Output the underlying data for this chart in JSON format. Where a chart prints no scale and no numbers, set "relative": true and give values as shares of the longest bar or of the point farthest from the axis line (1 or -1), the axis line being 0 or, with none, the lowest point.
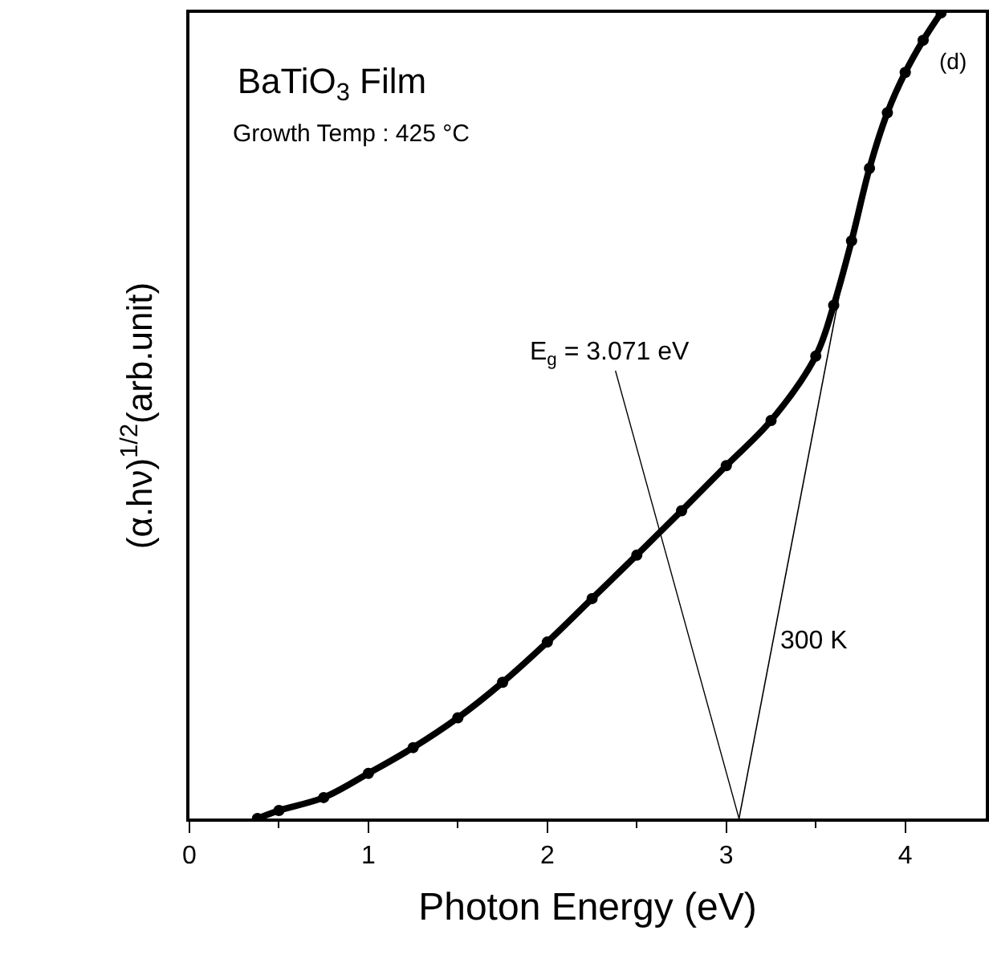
{
  "chart_data": {
    "type": "line",
    "relative": true,
    "title": "BaTiO$_{3}$ Film",
    "xlabel": "Photon Energy (eV)",
    "ylabel": "(α.hν)$^{1/2}$(arb.unit)",
    "xlim": [
      0,
      4.45
    ],
    "xticks": [
      0,
      1,
      2,
      3,
      4
    ],
    "marker": "circle",
    "tick_labels": "x",
    "series": [
      {
        "color": "#000000",
        "x": [
          0.38,
          0.5,
          0.75,
          1.0,
          1.25,
          1.5,
          1.75,
          2.0,
          2.25,
          2.5,
          2.75,
          3.0,
          3.25,
          3.5,
          3.6,
          3.7,
          3.8,
          3.9,
          4.0,
          4.1,
          4.2
        ],
        "values": [
          0,
          0.01,
          0.026,
          0.056,
          0.088,
          0.125,
          0.169,
          0.219,
          0.273,
          0.327,
          0.382,
          0.438,
          0.494,
          0.574,
          0.637,
          0.717,
          0.807,
          0.876,
          0.926,
          0.966,
          1.0
        ]
      },
      {
        "type": "line",
        "marker": "none",
        "color": "#000000",
        "x": [
          3.071,
          3.64
        ],
        "values": [
          0,
          0.66
        ]
      }
    ],
    "annotations": [
      "Growth Temp : 425 °C",
      "(d)",
      "300 K",
      {
        "text": "E$_{g}$ = 3.071 eV",
        "x": 3.071,
        "y": 0
      }
    ]
  }
}
